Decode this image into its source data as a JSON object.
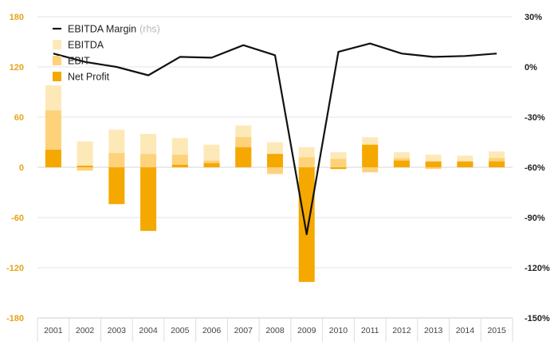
{
  "chart_data": {
    "type": "bar",
    "categories": [
      "2001",
      "2002",
      "2003",
      "2004",
      "2005",
      "2006",
      "2007",
      "2008",
      "2009",
      "2010",
      "2011",
      "2012",
      "2013",
      "2014",
      "2015"
    ],
    "series": [
      {
        "name": "EBITDA",
        "kind": "bar",
        "axis": "left",
        "color": "#fde9b8",
        "values": [
          98,
          31,
          45,
          40,
          35,
          27,
          50,
          30,
          24,
          18,
          36,
          18,
          15,
          14,
          19
        ]
      },
      {
        "name": "EBIT",
        "kind": "bar",
        "axis": "left",
        "color": "#fdd27a",
        "values": [
          68,
          -4,
          17,
          16,
          15,
          8,
          36,
          -8,
          12,
          10,
          -6,
          11,
          -2,
          7,
          11
        ]
      },
      {
        "name": "Net Profit",
        "kind": "bar",
        "axis": "left",
        "color": "#f5a800",
        "values": [
          21,
          2,
          -44,
          -76,
          3,
          5,
          24,
          16,
          -137,
          -2,
          27,
          8,
          7,
          7,
          7
        ]
      },
      {
        "name": "EBITDA Margin",
        "kind": "line",
        "axis": "right",
        "color": "#111111",
        "values": [
          8,
          3,
          0,
          -5,
          6,
          5.5,
          13,
          7,
          -100,
          9,
          14,
          8,
          6,
          6.5,
          8
        ]
      }
    ],
    "y_left": {
      "range": [
        -180,
        180
      ],
      "ticks": [
        "180",
        "120",
        "60",
        "0",
        "-60",
        "-120",
        "-180"
      ],
      "tick_values": [
        180,
        120,
        60,
        0,
        -60,
        -120,
        -180
      ],
      "color": "#e8a317"
    },
    "y_right": {
      "range": [
        -150,
        30
      ],
      "ticks": [
        "30%",
        "0%",
        "-30%",
        "-60%",
        "-90%",
        "-120%",
        "-150%"
      ],
      "tick_values": [
        30,
        0,
        -30,
        -60,
        -90,
        -120,
        -150
      ]
    },
    "legend": {
      "placement": "top-left",
      "items": [
        {
          "label": "EBITDA Margin",
          "note": "(rhs)",
          "symbol": "line",
          "color": "#111111"
        },
        {
          "label": "EBITDA",
          "symbol": "box",
          "color": "#fde9b8"
        },
        {
          "label": "EBIT",
          "symbol": "box",
          "color": "#fdd27a"
        },
        {
          "label": "Net Profit",
          "symbol": "box",
          "color": "#f5a800"
        }
      ]
    },
    "grid": "horizontal"
  }
}
